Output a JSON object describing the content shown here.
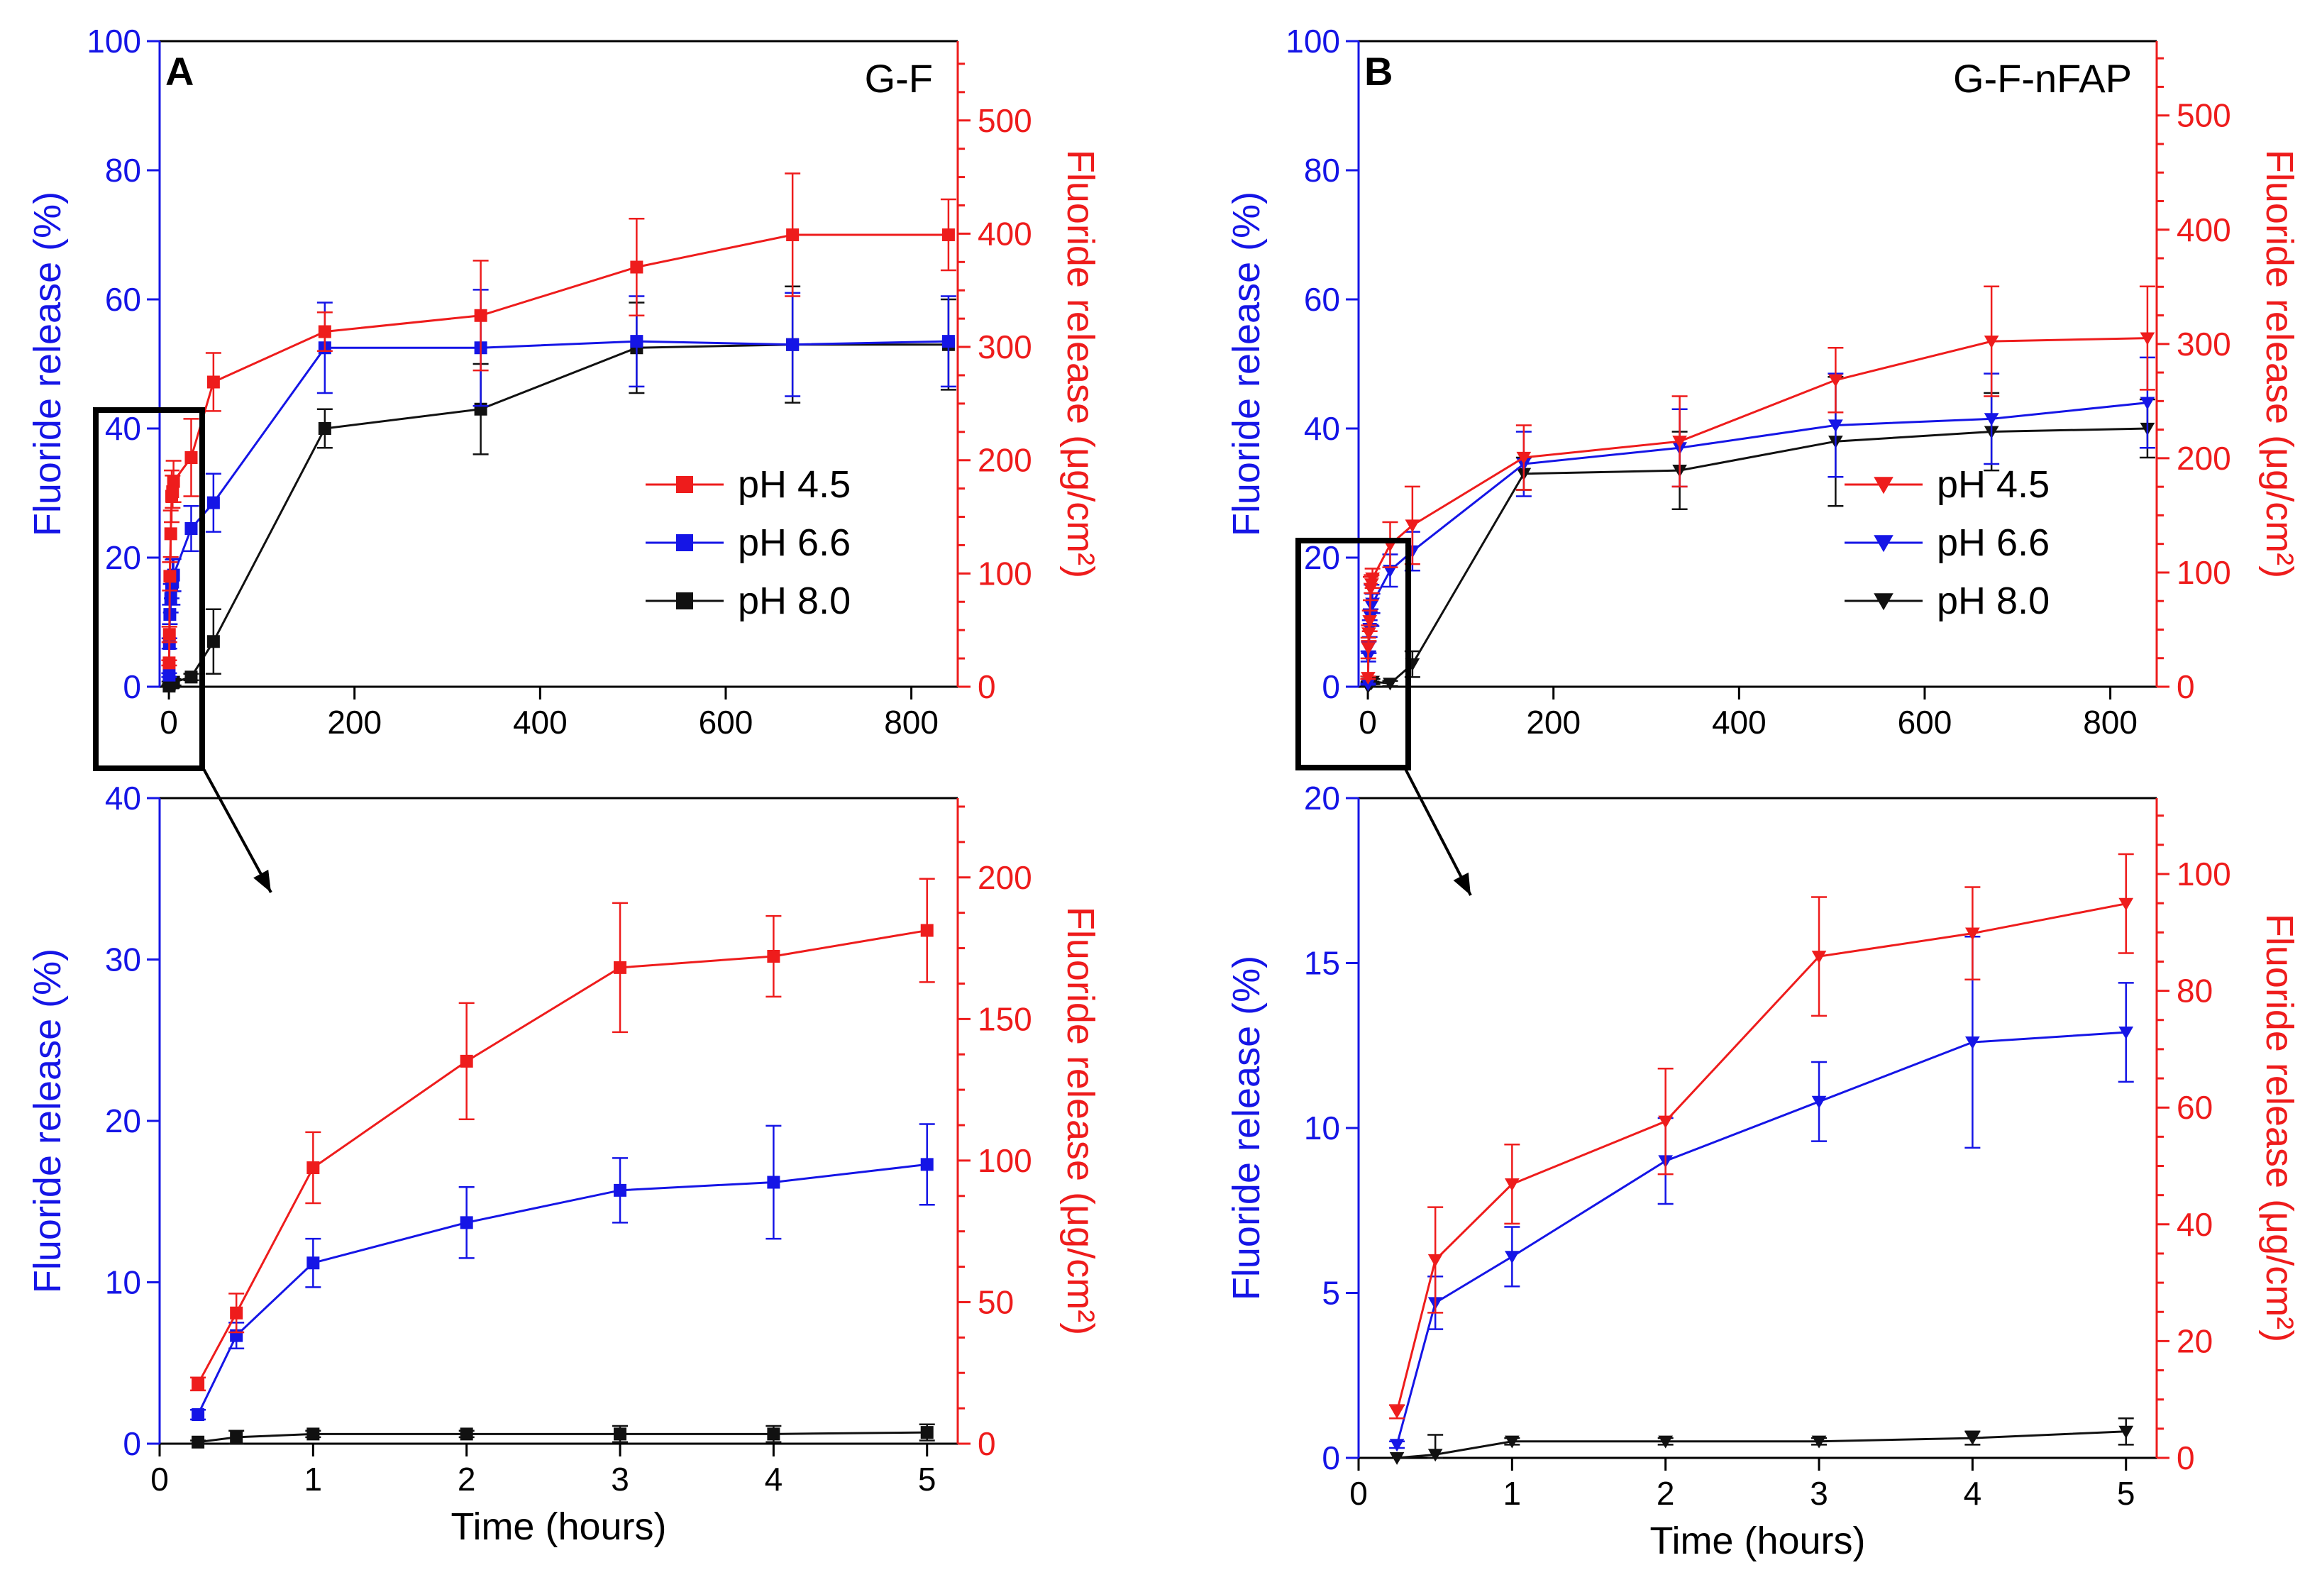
{
  "colors": {
    "blue": "#1515e6",
    "red": "#ee1c1c",
    "black": "#111111",
    "axis": "#000000"
  },
  "legend_entries": [
    "pH 4.5",
    "pH 6.6",
    "pH 8.0"
  ],
  "chart_data": [
    {
      "id": "A-top",
      "type": "line",
      "panel_letter": "A",
      "title": "G-F",
      "marker": "square",
      "xlabel": "",
      "ylabel": "Fluoride release (%)",
      "ylabel_right": "Fluoride release (μg/cm²)",
      "xlim": [
        -10,
        850
      ],
      "ylim": [
        0,
        100
      ],
      "ylim_right": [
        0,
        570
      ],
      "xticks": [
        0,
        200,
        400,
        600,
        800
      ],
      "yticks": [
        0,
        20,
        40,
        60,
        80,
        100
      ],
      "yticks_right": [
        0,
        100,
        200,
        300,
        400,
        500
      ],
      "legend": [
        "pH 4.5",
        "pH 6.6",
        "pH 8.0"
      ],
      "series": [
        {
          "name": "pH 4.5",
          "color": "red",
          "x": [
            0.25,
            0.5,
            1,
            2,
            3,
            4,
            5,
            24,
            48,
            168,
            336,
            504,
            672,
            840
          ],
          "y": [
            3.7,
            8.1,
            17.1,
            23.7,
            29.5,
            30.2,
            31.8,
            35.5,
            47.2,
            55.0,
            57.5,
            65.0,
            70.0,
            70.0
          ],
          "err": [
            0.4,
            1.2,
            2.2,
            3.6,
            4.0,
            2.5,
            3.2,
            6,
            4.5,
            3,
            8.5,
            7.5,
            9.5,
            5.5
          ]
        },
        {
          "name": "pH 6.6",
          "color": "blue",
          "x": [
            0.25,
            0.5,
            1,
            2,
            3,
            4,
            5,
            24,
            48,
            168,
            336,
            504,
            672,
            840
          ],
          "y": [
            1.8,
            6.7,
            11.2,
            13.7,
            15.7,
            16.2,
            17.3,
            24.5,
            28.5,
            52.5,
            52.5,
            53.5,
            53.0,
            53.5
          ],
          "err": [
            0.3,
            0.8,
            1.5,
            2.2,
            2.0,
            3.5,
            2.5,
            3.5,
            4.5,
            7,
            9,
            7,
            8,
            7
          ]
        },
        {
          "name": "pH 8.0",
          "color": "black",
          "x": [
            0.25,
            0.5,
            1,
            2,
            3,
            4,
            5,
            24,
            48,
            168,
            336,
            504,
            672,
            840
          ],
          "y": [
            0.1,
            0.4,
            0.6,
            0.6,
            0.6,
            0.6,
            0.7,
            1.5,
            7.0,
            40.0,
            43.0,
            52.5,
            53.0,
            53.0
          ],
          "err": [
            0.1,
            0.4,
            0.2,
            0.2,
            0.5,
            0.5,
            0.5,
            0.5,
            5,
            3,
            7,
            7,
            9,
            7
          ]
        }
      ]
    },
    {
      "id": "A-bottom",
      "type": "line",
      "panel_letter": "",
      "title": "",
      "marker": "square",
      "xlabel": "Time (hours)",
      "ylabel": "Fluoride release (%)",
      "ylabel_right": "Fluoride release (μg/cm²)",
      "xlim": [
        0,
        5.2
      ],
      "ylim": [
        0,
        40
      ],
      "ylim_right": [
        0,
        228
      ],
      "xticks": [
        0,
        1,
        2,
        3,
        4,
        5
      ],
      "yticks": [
        0,
        10,
        20,
        30,
        40
      ],
      "yticks_right": [
        0,
        50,
        100,
        150,
        200
      ],
      "legend": [],
      "series": [
        {
          "name": "pH 4.5",
          "color": "red",
          "x": [
            0.25,
            0.5,
            1,
            2,
            3,
            4,
            5
          ],
          "y": [
            3.7,
            8.1,
            17.1,
            23.7,
            29.5,
            30.2,
            31.8
          ],
          "err": [
            0.4,
            1.2,
            2.2,
            3.6,
            4.0,
            2.5,
            3.2
          ]
        },
        {
          "name": "pH 6.6",
          "color": "blue",
          "x": [
            0.25,
            0.5,
            1,
            2,
            3,
            4,
            5
          ],
          "y": [
            1.8,
            6.7,
            11.2,
            13.7,
            15.7,
            16.2,
            17.3
          ],
          "err": [
            0.3,
            0.8,
            1.5,
            2.2,
            2.0,
            3.5,
            2.5
          ]
        },
        {
          "name": "pH 8.0",
          "color": "black",
          "x": [
            0.25,
            0.5,
            1,
            2,
            3,
            4,
            5
          ],
          "y": [
            0.1,
            0.4,
            0.6,
            0.6,
            0.6,
            0.6,
            0.7
          ],
          "err": [
            0.1,
            0.4,
            0.2,
            0.2,
            0.5,
            0.5,
            0.5
          ]
        }
      ]
    },
    {
      "id": "B-top",
      "type": "line",
      "panel_letter": "B",
      "title": "G-F-nFAP",
      "marker": "triangle-down",
      "xlabel": "",
      "ylabel": "Fluoride release (%)",
      "ylabel_right": "Fluoride release (μg/cm²)",
      "xlim": [
        -10,
        850
      ],
      "ylim": [
        0,
        100
      ],
      "ylim_right": [
        0,
        565
      ],
      "xticks": [
        0,
        200,
        400,
        600,
        800
      ],
      "yticks": [
        0,
        20,
        40,
        60,
        80,
        100
      ],
      "yticks_right": [
        0,
        100,
        200,
        300,
        400,
        500
      ],
      "legend": [
        "pH 4.5",
        "pH 6.6",
        "pH 8.0"
      ],
      "series": [
        {
          "name": "pH 4.5",
          "color": "red",
          "x": [
            0.25,
            0.5,
            1,
            2,
            3,
            4,
            5,
            24,
            48,
            168,
            336,
            504,
            672,
            840
          ],
          "y": [
            1.4,
            6.0,
            8.3,
            10.2,
            15.2,
            15.9,
            16.8,
            22.0,
            25.0,
            35.5,
            38.0,
            47.5,
            53.5,
            54.0
          ],
          "err": [
            0.2,
            1.6,
            1.2,
            1.6,
            1.8,
            1.4,
            1.5,
            3.5,
            6,
            5,
            7,
            5,
            8.5,
            8
          ]
        },
        {
          "name": "pH 6.6",
          "color": "blue",
          "x": [
            0.25,
            0.5,
            1,
            2,
            3,
            4,
            5,
            24,
            48,
            168,
            336,
            504,
            672,
            840
          ],
          "y": [
            0.4,
            4.7,
            6.1,
            9.0,
            10.8,
            12.6,
            12.9,
            18.0,
            21.0,
            34.5,
            37.0,
            40.5,
            41.5,
            44.0
          ],
          "err": [
            0.1,
            0.8,
            0.9,
            1.3,
            1.2,
            3.2,
            1.5,
            2.5,
            3,
            5,
            6,
            8,
            7,
            7
          ]
        },
        {
          "name": "pH 8.0",
          "color": "black",
          "x": [
            0.25,
            0.5,
            1,
            2,
            3,
            4,
            5,
            24,
            48,
            168,
            336,
            504,
            672,
            840
          ],
          "y": [
            0,
            0.1,
            0.5,
            0.5,
            0.5,
            0.6,
            0.8,
            0.5,
            3.5,
            33.0,
            33.5,
            38.0,
            39.5,
            40.0
          ],
          "err": [
            0,
            0.6,
            0.1,
            0.1,
            0.1,
            0.2,
            0.4,
            0.4,
            2,
            2.5,
            6,
            10,
            6,
            4.5
          ]
        }
      ]
    },
    {
      "id": "B-bottom",
      "type": "line",
      "panel_letter": "",
      "title": "",
      "marker": "triangle-down",
      "xlabel": "Time (hours)",
      "ylabel": "Fluoride release (%)",
      "ylabel_right": "Fluoride release (μg/cm²)",
      "xlim": [
        0,
        5.2
      ],
      "ylim": [
        0,
        20
      ],
      "ylim_right": [
        0,
        113
      ],
      "xticks": [
        0,
        1,
        2,
        3,
        4,
        5
      ],
      "yticks": [
        0,
        5,
        10,
        15,
        20
      ],
      "yticks_right": [
        0,
        20,
        40,
        60,
        80,
        100
      ],
      "legend": [],
      "series": [
        {
          "name": "pH 4.5",
          "color": "red",
          "x": [
            0.25,
            0.5,
            1,
            2,
            3,
            4,
            5
          ],
          "y": [
            1.4,
            6.0,
            8.3,
            10.2,
            15.2,
            15.9,
            16.8
          ],
          "err": [
            0.2,
            1.6,
            1.2,
            1.6,
            1.8,
            1.4,
            1.5
          ]
        },
        {
          "name": "pH 6.6",
          "color": "blue",
          "x": [
            0.25,
            0.5,
            1,
            2,
            3,
            4,
            5
          ],
          "y": [
            0.4,
            4.7,
            6.1,
            9.0,
            10.8,
            12.6,
            12.9
          ],
          "err": [
            0.1,
            0.8,
            0.9,
            1.3,
            1.2,
            3.2,
            1.5
          ]
        },
        {
          "name": "pH 8.0",
          "color": "black",
          "x": [
            0.25,
            0.5,
            1,
            2,
            3,
            4,
            5
          ],
          "y": [
            0,
            0.1,
            0.5,
            0.5,
            0.5,
            0.6,
            0.8
          ],
          "err": [
            0,
            0.6,
            0.1,
            0.1,
            0.1,
            0.2,
            0.4
          ]
        }
      ]
    }
  ]
}
